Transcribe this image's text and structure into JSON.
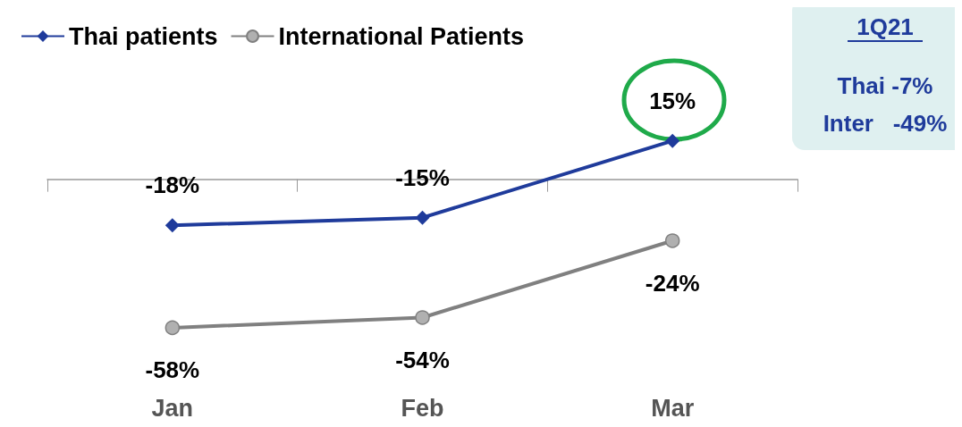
{
  "chart_data": {
    "type": "line",
    "categories": [
      "Jan",
      "Feb",
      "Mar"
    ],
    "series": [
      {
        "name": "Thai patients",
        "color": "#1f3b9b",
        "marker": "diamond",
        "values": [
          -18,
          -15,
          15
        ],
        "value_labels": [
          "-18%",
          "-15%",
          "15%"
        ]
      },
      {
        "name": "International Patients",
        "color": "#808080",
        "marker": "circle",
        "values": [
          -58,
          -54,
          -24
        ],
        "value_labels": [
          "-58%",
          "-54%",
          "-24%"
        ]
      }
    ],
    "annotations": [
      "1Q21",
      "Thai -7%",
      "Inter   -49%"
    ],
    "legend": "top left",
    "grid": false
  }
}
